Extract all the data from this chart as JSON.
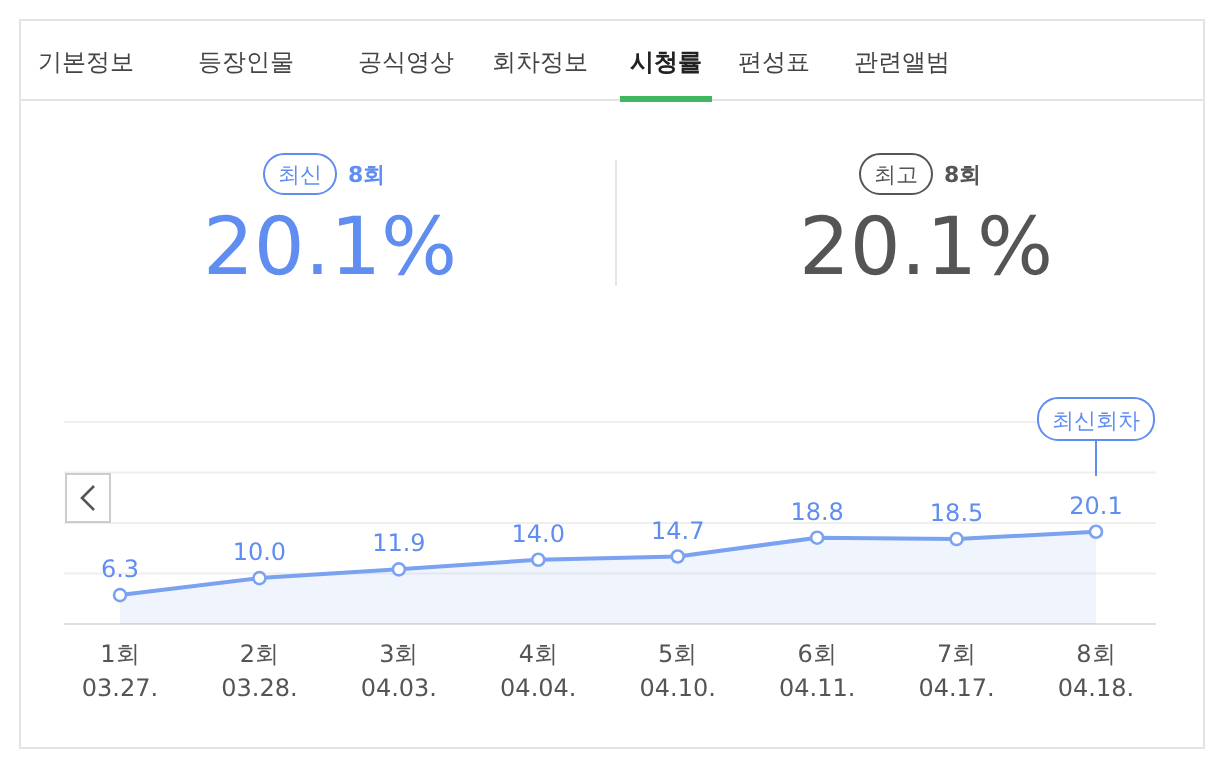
{
  "chart_data": [
    {
      "type": "other",
      "annotations": [
        "기본정보",
        "등장인물",
        "공식영상",
        "회차정보",
        "시청률",
        "편성표",
        "관련앨범",
        "최신",
        "8회",
        "20.1%",
        "최고",
        "8회",
        "20.1%"
      ]
    },
    {
      "type": "area",
      "categories": [
        "1회\n03.27.",
        "2회\n03.28.",
        "3회\n04.03.",
        "4회\n04.04.",
        "5회\n04.10.",
        "6회\n04.11.",
        "7회\n04.17.",
        "8회\n04.18."
      ],
      "series": [
        {
          "color": "#7aa2f0",
          "values": [
            6.3,
            10.0,
            11.9,
            14.0,
            14.7,
            18.8,
            18.5,
            20.1
          ],
          "value_labels": [
            "6.3",
            "10.0",
            "11.9",
            "14.0",
            "14.7",
            "18.8",
            "18.5",
            "20.1"
          ]
        }
      ],
      "ylim": [
        0,
        44
      ],
      "yticks": [
        {
          "value": 0,
          "label": null
        },
        {
          "value": 11,
          "label": null
        },
        {
          "value": 22,
          "label": null
        },
        {
          "value": 33,
          "label": null
        },
        {
          "value": 44,
          "label": null
        }
      ],
      "grid": "y",
      "marker": "circle",
      "annotations": [
        "최신회차"
      ]
    }
  ]
}
